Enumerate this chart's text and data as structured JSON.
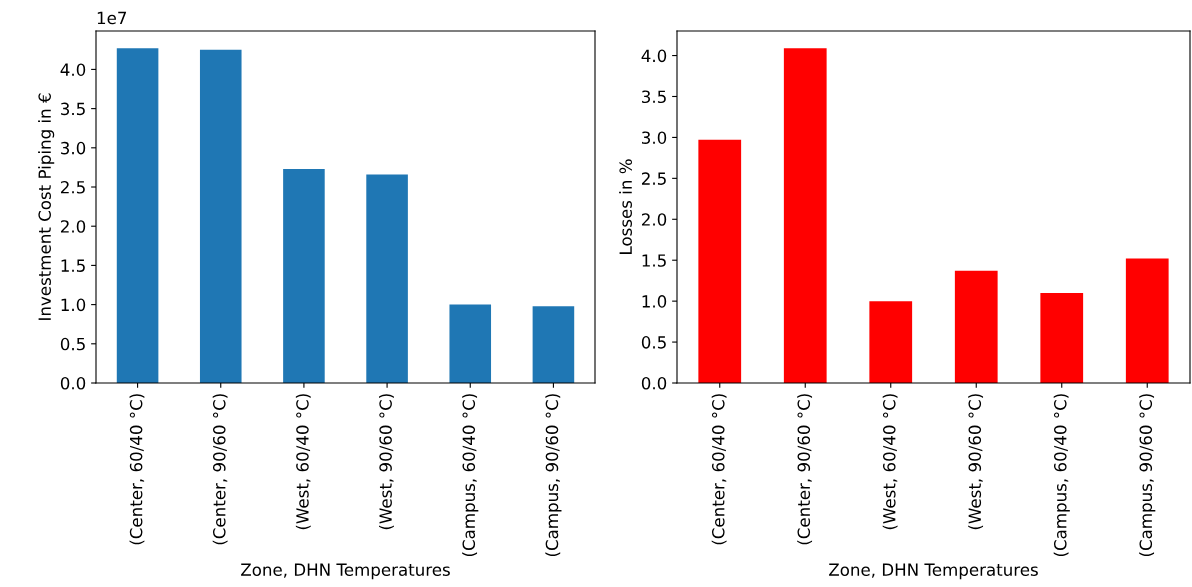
{
  "chart_data": [
    {
      "type": "bar",
      "xlabel": "Zone, DHN Temperatures",
      "ylabel": "Investment Cost Piping in €",
      "categories": [
        "(Center, 60/40 °C)",
        "(Center, 90/60 °C)",
        "(West, 60/40 °C)",
        "(West, 90/60 °C)",
        "(Campus, 60/40 °C)",
        "(Campus, 90/60 °C)"
      ],
      "values": [
        4.27,
        4.25,
        2.73,
        2.66,
        1.0,
        0.98
      ],
      "color": "#1f77b4",
      "ylim": [
        0,
        4.49
      ],
      "yticks": [
        {
          "value": 0,
          "label": "0.0"
        },
        0.5,
        {
          "value": 1,
          "label": "1.0"
        },
        1.5,
        {
          "value": 2,
          "label": "2.0"
        },
        2.5,
        {
          "value": 3,
          "label": "3.0"
        },
        3.5,
        {
          "value": 4,
          "label": "4.0"
        }
      ],
      "annotations": [
        "1e7"
      ],
      "grid": false,
      "legend": false
    },
    {
      "type": "bar",
      "xlabel": "Zone, DHN Temperatures",
      "ylabel": "Losses in %",
      "categories": [
        "(Center, 60/40 °C)",
        "(Center, 90/60 °C)",
        "(West, 60/40 °C)",
        "(West, 90/60 °C)",
        "(Campus, 60/40 °C)",
        "(Campus, 90/60 °C)"
      ],
      "values": [
        2.97,
        4.09,
        1.0,
        1.37,
        1.1,
        1.52
      ],
      "color": "#ff0000",
      "ylim": [
        0,
        4.3
      ],
      "yticks": [
        {
          "value": 0,
          "label": "0.0"
        },
        0.5,
        {
          "value": 1,
          "label": "1.0"
        },
        1.5,
        {
          "value": 2,
          "label": "2.0"
        },
        2.5,
        {
          "value": 3,
          "label": "3.0"
        },
        3.5,
        {
          "value": 4,
          "label": "4.0"
        }
      ],
      "grid": false,
      "legend": false
    }
  ]
}
